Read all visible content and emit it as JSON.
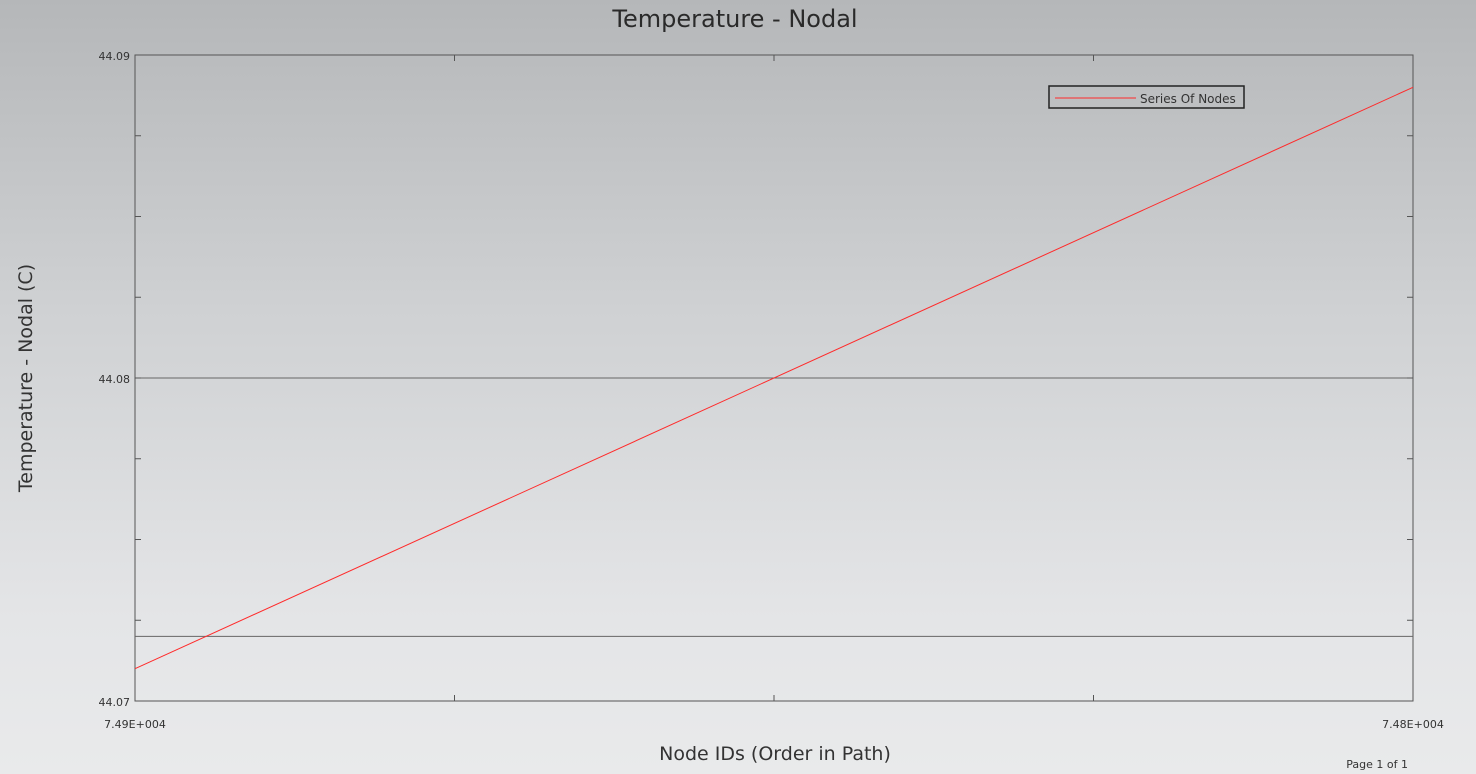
{
  "page": {
    "footer": "Page 1 of 1"
  },
  "colors": {
    "series": "#ff2a2a",
    "frame": "#555555",
    "grid": "#666666",
    "legend_border": "#222222"
  },
  "chart_data": {
    "type": "line",
    "title": "Temperature - Nodal",
    "xlabel": "Node IDs (Order in Path)",
    "ylabel": "Temperature - Nodal (C)",
    "x_tick_labels": [
      "7.49E+004",
      "7.48E+004"
    ],
    "x_tick_count": 5,
    "ylim": [
      44.07,
      44.09
    ],
    "y_ticks": [
      44.07,
      44.08,
      44.09
    ],
    "y_tick_labels": [
      "44.07",
      "44.08",
      "44.09"
    ],
    "y_minor_step": 0.0025,
    "gridlines": [
      44.072,
      44.08
    ],
    "legend_position": "top-right",
    "series": [
      {
        "name": "Series Of Nodes",
        "x": [
          0,
          1
        ],
        "y": [
          44.071,
          44.089
        ]
      }
    ]
  }
}
